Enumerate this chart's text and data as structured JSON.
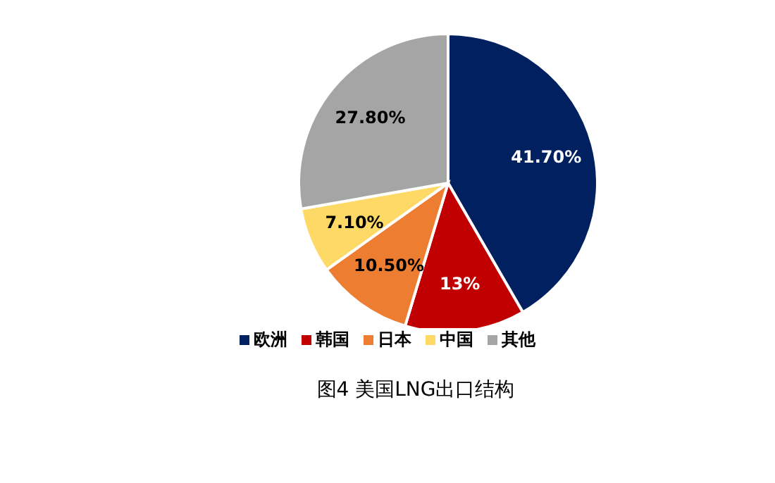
{
  "chart_data": {
    "type": "pie",
    "title": "图4 美国LNG出口结构",
    "categories": [
      "欧洲",
      "韩国",
      "日本",
      "中国",
      "其他"
    ],
    "values": [
      41.7,
      13,
      10.5,
      7.1,
      27.8
    ],
    "value_labels": [
      "41.70%",
      "13%",
      "10.50%",
      "7.10%",
      "27.80%"
    ],
    "colors": [
      "#002060",
      "#c00000",
      "#ed7d31",
      "#ffd966",
      "#a5a5a5"
    ],
    "legend": "bottom"
  }
}
